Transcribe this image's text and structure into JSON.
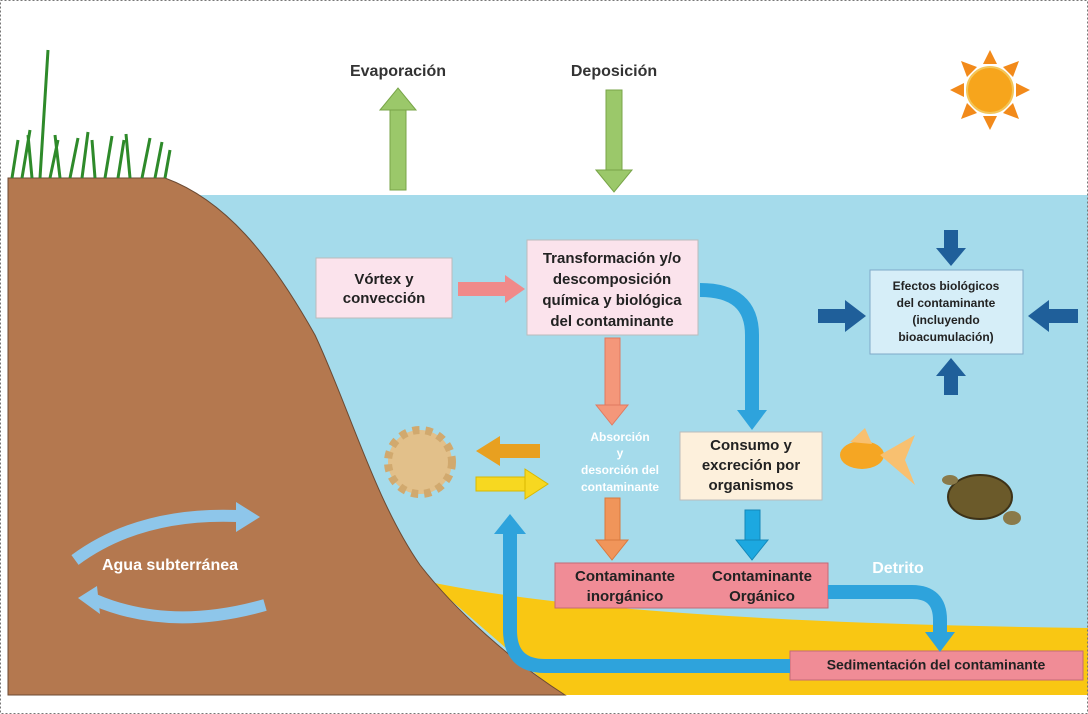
{
  "labels": {
    "evaporation": "Evaporación",
    "deposition": "Deposición",
    "groundwater": "Agua subterránea",
    "detritus": "Detrito"
  },
  "boxes": {
    "vortex": [
      "Vórtex y",
      "convección"
    ],
    "transformation": [
      "Transformación y/o",
      "descomposición",
      "química y biológica",
      "del contaminante"
    ],
    "effects": [
      "Efectos biológicos",
      "del contaminante",
      "(incluyendo",
      "bioacumulación)"
    ],
    "sorption": [
      "Absorción",
      "y",
      "desorción del",
      "contaminante"
    ],
    "consumption": [
      "Consumo y",
      "excreción por",
      "organismos"
    ],
    "inorganic": [
      "Contaminante",
      "inorgánico"
    ],
    "organic": [
      "Contaminante",
      "Orgánico"
    ],
    "sedimentation": [
      "Sedimentación del contaminante"
    ]
  }
}
